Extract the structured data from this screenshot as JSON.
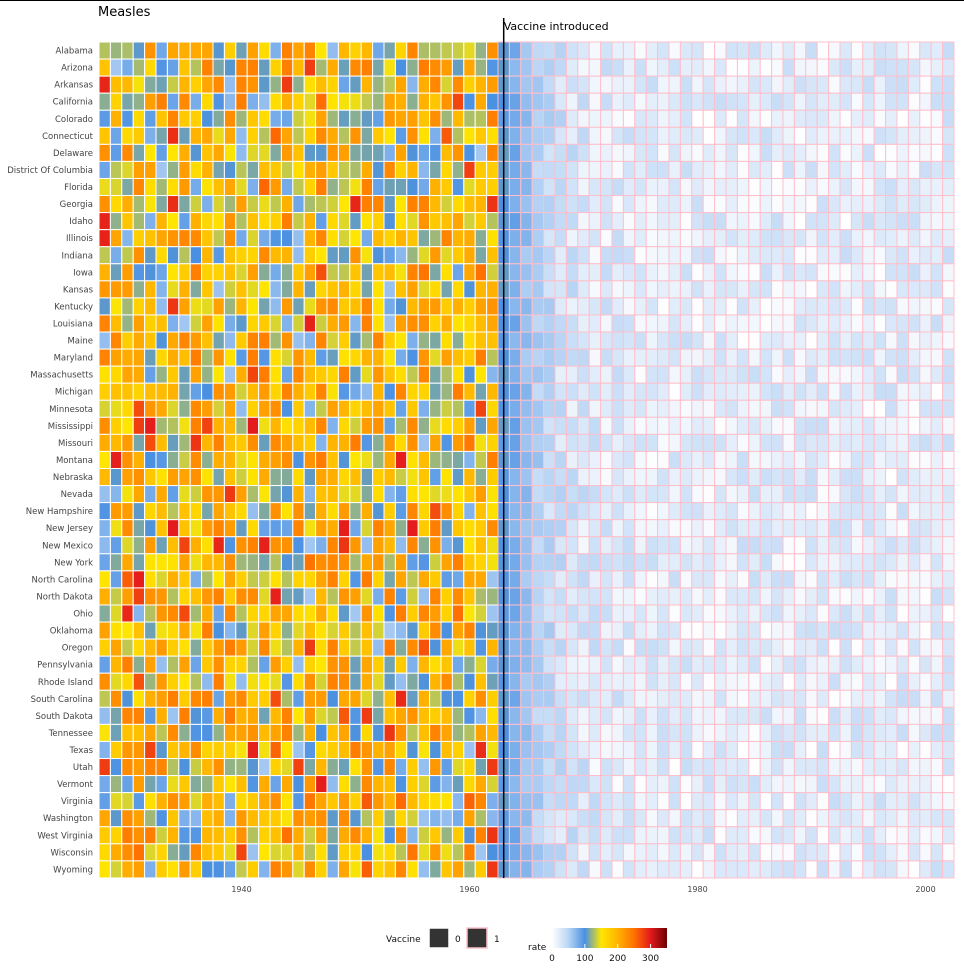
{
  "chart_data": {
    "type": "heatmap",
    "title": "Measles",
    "annotation": {
      "text": "Vaccine introduced",
      "x": 1963
    },
    "xlim": [
      1928,
      2002
    ],
    "x_ticks": [
      1940,
      1960,
      1980,
      2000
    ],
    "x_tick_labels": [
      "1940",
      "1960",
      "1980",
      "2000"
    ],
    "fill_scale": {
      "name": "rate",
      "min": 0,
      "max": 350,
      "colors": [
        "#ffffff",
        "#b9d5f5",
        "#4a90e2",
        "#ffe600",
        "#ffb300",
        "#ff7000",
        "#e41a1c",
        "#6b0000"
      ],
      "breaks": [
        0,
        100,
        200,
        300
      ],
      "break_labels": [
        "0",
        "100",
        "200",
        "300"
      ]
    },
    "border_legend": {
      "title": "Vaccine",
      "levels": [
        "0",
        "1"
      ],
      "colors": [
        "#ffffff",
        "#ffc0cb"
      ]
    },
    "states": [
      "Alabama",
      "Arizona",
      "Arkansas",
      "California",
      "Colorado",
      "Connecticut",
      "Delaware",
      "District Of Columbia",
      "Florida",
      "Georgia",
      "Idaho",
      "Illinois",
      "Indiana",
      "Iowa",
      "Kansas",
      "Kentucky",
      "Louisiana",
      "Maine",
      "Maryland",
      "Massachusetts",
      "Michigan",
      "Minnesota",
      "Mississippi",
      "Missouri",
      "Montana",
      "Nebraska",
      "Nevada",
      "New Hampshire",
      "New Jersey",
      "New Mexico",
      "New York",
      "North Carolina",
      "North Dakota",
      "Ohio",
      "Oklahoma",
      "Oregon",
      "Pennsylvania",
      "Rhode Island",
      "South Carolina",
      "South Dakota",
      "Tennessee",
      "Texas",
      "Utah",
      "Vermont",
      "Virginia",
      "Washington",
      "West Virginia",
      "Wisconsin",
      "Wyoming"
    ]
  }
}
